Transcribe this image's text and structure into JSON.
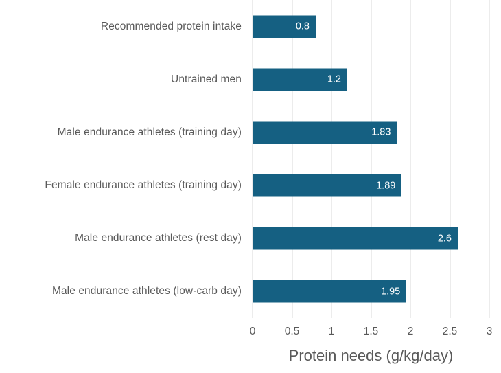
{
  "chart_data": {
    "type": "bar",
    "orientation": "horizontal",
    "categories": [
      "Recommended protein intake",
      "Untrained men",
      "Male endurance athletes (training day)",
      "Female endurance athletes (training day)",
      "Male endurance athletes (rest day)",
      "Male endurance athletes (low-carb day)"
    ],
    "values": [
      0.8,
      1.2,
      1.83,
      1.89,
      2.6,
      1.95
    ],
    "value_labels": [
      "0.8",
      "1.2",
      "1.83",
      "1.89",
      "2.6",
      "1.95"
    ],
    "title": "",
    "xlabel": "Protein needs (g/kg/day)",
    "ylabel": "",
    "xlim": [
      0,
      3
    ],
    "xticks": [
      "0",
      "0.5",
      "1",
      "1.5",
      "2",
      "2.5",
      "3"
    ],
    "grid": true,
    "legend": false,
    "colors": {
      "bar_fill": "#156082",
      "data_label": "#ffffff",
      "gridline": "#d9d9d9",
      "category_label": "#595959",
      "tick_label": "#595959",
      "axis_title": "#595959",
      "background": "#ffffff"
    }
  }
}
